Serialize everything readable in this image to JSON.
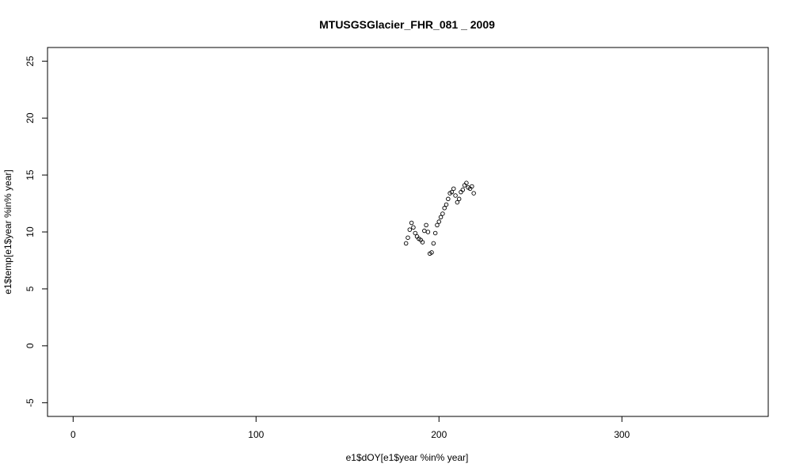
{
  "chart_data": {
    "type": "scatter",
    "title": "MTUSGSGlacier_FHR_081 _ 2009",
    "xlabel": "e1$dOY[e1$year %in% year]",
    "ylabel": "e1$temp[e1$year %in% year]",
    "xlim": [
      -14,
      380
    ],
    "ylim": [
      -6.2,
      26.2
    ],
    "xticks": [
      0,
      100,
      200,
      300
    ],
    "yticks": [
      -5,
      0,
      5,
      10,
      15,
      20,
      25
    ],
    "grid": false,
    "marker": "open-circle",
    "points": [
      {
        "x": 182,
        "y": 9.0
      },
      {
        "x": 183,
        "y": 9.5
      },
      {
        "x": 184,
        "y": 10.2
      },
      {
        "x": 185,
        "y": 10.8
      },
      {
        "x": 186,
        "y": 10.4
      },
      {
        "x": 187,
        "y": 9.9
      },
      {
        "x": 188,
        "y": 9.6
      },
      {
        "x": 189,
        "y": 9.4
      },
      {
        "x": 190,
        "y": 9.3
      },
      {
        "x": 191,
        "y": 9.1
      },
      {
        "x": 192,
        "y": 10.1
      },
      {
        "x": 193,
        "y": 10.6
      },
      {
        "x": 194,
        "y": 10.0
      },
      {
        "x": 195,
        "y": 8.1
      },
      {
        "x": 196,
        "y": 8.2
      },
      {
        "x": 197,
        "y": 9.0
      },
      {
        "x": 198,
        "y": 9.9
      },
      {
        "x": 199,
        "y": 10.6
      },
      {
        "x": 200,
        "y": 10.9
      },
      {
        "x": 201,
        "y": 11.3
      },
      {
        "x": 202,
        "y": 11.6
      },
      {
        "x": 203,
        "y": 12.1
      },
      {
        "x": 204,
        "y": 12.4
      },
      {
        "x": 205,
        "y": 12.9
      },
      {
        "x": 206,
        "y": 13.4
      },
      {
        "x": 207,
        "y": 13.5
      },
      {
        "x": 208,
        "y": 13.8
      },
      {
        "x": 209,
        "y": 13.2
      },
      {
        "x": 210,
        "y": 12.6
      },
      {
        "x": 211,
        "y": 12.9
      },
      {
        "x": 212,
        "y": 13.5
      },
      {
        "x": 213,
        "y": 13.7
      },
      {
        "x": 214,
        "y": 14.1
      },
      {
        "x": 215,
        "y": 14.3
      },
      {
        "x": 216,
        "y": 13.9
      },
      {
        "x": 217,
        "y": 13.8
      },
      {
        "x": 218,
        "y": 14.0
      },
      {
        "x": 219,
        "y": 13.4
      }
    ]
  }
}
